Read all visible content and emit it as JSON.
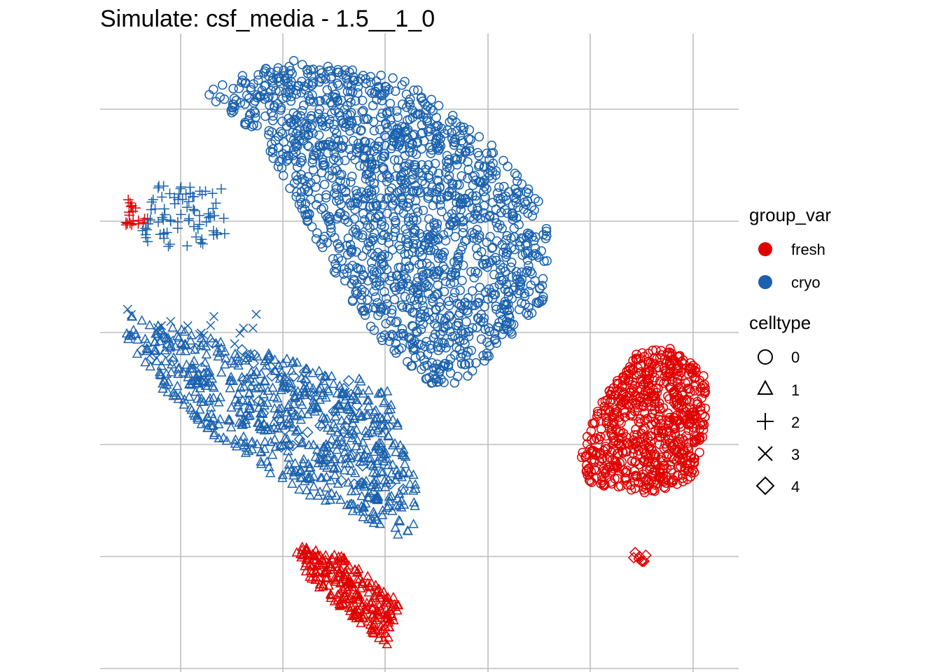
{
  "title": "Simulate: csf_media - 1.5__1_0",
  "colors": {
    "fresh": "#E00000",
    "cryo": "#1B62AE",
    "grid": "#BEBEBE"
  },
  "legend": {
    "group_title": "group_var",
    "groups": [
      {
        "label": "fresh",
        "color": "#E00000"
      },
      {
        "label": "cryo",
        "color": "#1B62AE"
      }
    ],
    "shape_title": "celltype",
    "shapes": [
      {
        "label": "0",
        "shape": "circle"
      },
      {
        "label": "1",
        "shape": "triangle"
      },
      {
        "label": "2",
        "shape": "plus"
      },
      {
        "label": "3",
        "shape": "cross"
      },
      {
        "label": "4",
        "shape": "diamond"
      }
    ]
  },
  "chart_data": {
    "type": "scatter",
    "title": "Simulate: csf_media - 1.5__1_0",
    "xlabel": "",
    "ylabel": "",
    "xlim": [
      0,
      100
    ],
    "ylim": [
      0,
      100
    ],
    "grid": true,
    "legend_position": "right",
    "tick_labels_shown": false,
    "clusters": [
      {
        "name": "cryo-celltype0-main",
        "group": "cryo",
        "celltype": "0",
        "n": 1600,
        "polygon": [
          [
            16,
            91
          ],
          [
            29,
            96
          ],
          [
            48,
            93
          ],
          [
            62,
            82
          ],
          [
            70,
            73
          ],
          [
            70,
            59
          ],
          [
            64,
            52
          ],
          [
            56,
            45
          ],
          [
            52,
            45
          ],
          [
            44,
            52
          ],
          [
            38,
            60
          ],
          [
            31,
            73
          ],
          [
            25,
            84
          ],
          [
            16,
            91
          ]
        ]
      },
      {
        "name": "cryo-celltype1-arm",
        "group": "cryo",
        "celltype": "1",
        "n": 700,
        "polygon": [
          [
            4,
            56
          ],
          [
            22,
            51
          ],
          [
            45,
            45
          ],
          [
            50,
            28
          ],
          [
            49,
            20
          ],
          [
            43,
            23
          ],
          [
            36,
            26
          ],
          [
            30,
            29
          ],
          [
            20,
            35
          ],
          [
            10,
            44
          ],
          [
            4,
            52
          ]
        ]
      },
      {
        "name": "cryo-celltype2-cluster",
        "group": "cryo",
        "celltype": "2",
        "n": 80,
        "polygon": [
          [
            8,
            77
          ],
          [
            19,
            76
          ],
          [
            20,
            68
          ],
          [
            13,
            66
          ],
          [
            6,
            67
          ]
        ]
      },
      {
        "name": "cryo-celltype3-scatter",
        "group": "cryo",
        "celltype": "3",
        "n": 20,
        "polygon": [
          [
            4,
            57
          ],
          [
            30,
            56
          ],
          [
            30,
            51
          ],
          [
            4,
            52
          ]
        ]
      },
      {
        "name": "cryo-celltype4-arm",
        "group": "cryo",
        "celltype": "4",
        "n": 60,
        "polygon": [
          [
            4,
            55
          ],
          [
            20,
            52
          ],
          [
            45,
            44
          ],
          [
            48,
            26
          ],
          [
            40,
            28
          ],
          [
            20,
            40
          ],
          [
            6,
            50
          ]
        ]
      },
      {
        "name": "fresh-celltype0-right",
        "group": "fresh",
        "celltype": "0",
        "n": 700,
        "polygon": [
          [
            79,
            43
          ],
          [
            84,
            50
          ],
          [
            90,
            51
          ],
          [
            95,
            46
          ],
          [
            95,
            40
          ],
          [
            93,
            30
          ],
          [
            86,
            28
          ],
          [
            77,
            29
          ],
          [
            75,
            34
          ],
          [
            77,
            39
          ]
        ]
      },
      {
        "name": "fresh-celltype1-lower",
        "group": "fresh",
        "celltype": "1",
        "n": 260,
        "polygon": [
          [
            30,
            20
          ],
          [
            38,
            18
          ],
          [
            47,
            11
          ],
          [
            45,
            4
          ],
          [
            40,
            8
          ],
          [
            33,
            14
          ]
        ]
      },
      {
        "name": "fresh-celltype2-small",
        "group": "fresh",
        "celltype": "2",
        "n": 18,
        "polygon": [
          [
            4,
            74
          ],
          [
            7,
            74
          ],
          [
            7,
            70
          ],
          [
            4,
            70
          ]
        ]
      },
      {
        "name": "fresh-celltype4-small",
        "group": "fresh",
        "celltype": "4",
        "n": 8,
        "polygon": [
          [
            83,
            19
          ],
          [
            86,
            19
          ],
          [
            86,
            17
          ],
          [
            83,
            17
          ]
        ]
      }
    ]
  }
}
